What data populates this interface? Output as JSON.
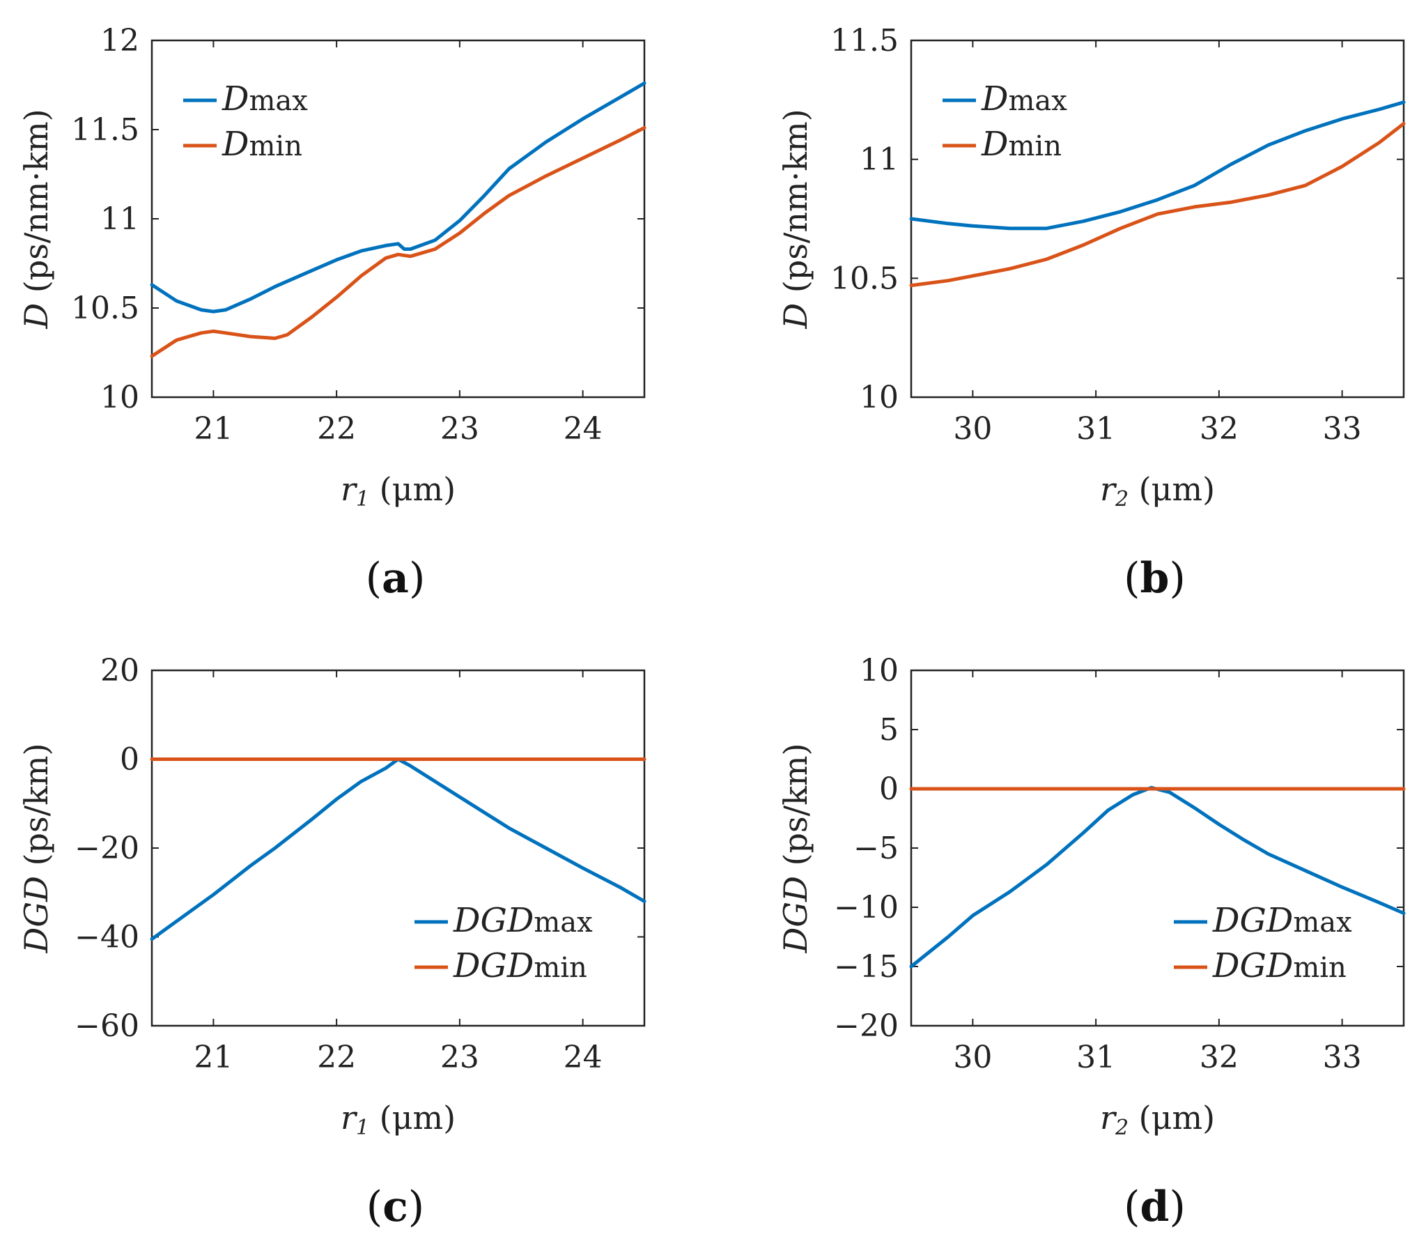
{
  "colors": {
    "max": "#0072BD",
    "min": "#D95319",
    "axis": "#222222"
  },
  "chart_data": [
    {
      "type": "line",
      "panel_label": "a",
      "xlabel_var": "r",
      "xlabel_sub": "1",
      "xlabel_unit": "(μm)",
      "ylabel_var": "D",
      "ylabel_unit": "(ps/nm·km)",
      "xlim": [
        20.5,
        24.5
      ],
      "ylim": [
        10,
        12
      ],
      "xticks": [
        21,
        22,
        23,
        24
      ],
      "xtick_labels": [
        "21",
        "22",
        "23",
        "24"
      ],
      "yticks": [
        10,
        10.5,
        11,
        11.5,
        12
      ],
      "ytick_labels": [
        "10",
        "10.5",
        "11",
        "11.5",
        "12"
      ],
      "legend_loc": "top-left",
      "series": [
        {
          "key": "max",
          "name_var": "D",
          "name_sub": "max",
          "x": [
            20.5,
            20.7,
            20.9,
            21.0,
            21.1,
            21.3,
            21.5,
            21.8,
            22.0,
            22.2,
            22.4,
            22.5,
            22.55,
            22.6,
            22.8,
            23.0,
            23.2,
            23.4,
            23.7,
            24.0,
            24.3,
            24.5
          ],
          "y": [
            10.63,
            10.54,
            10.49,
            10.48,
            10.49,
            10.55,
            10.62,
            10.71,
            10.77,
            10.82,
            10.85,
            10.86,
            10.83,
            10.83,
            10.88,
            10.99,
            11.13,
            11.28,
            11.43,
            11.56,
            11.68,
            11.76
          ]
        },
        {
          "key": "min",
          "name_var": "D",
          "name_sub": "min",
          "x": [
            20.5,
            20.7,
            20.9,
            21.0,
            21.1,
            21.3,
            21.5,
            21.6,
            21.8,
            22.0,
            22.2,
            22.4,
            22.5,
            22.6,
            22.8,
            23.0,
            23.2,
            23.4,
            23.7,
            24.0,
            24.3,
            24.5
          ],
          "y": [
            10.23,
            10.32,
            10.36,
            10.37,
            10.36,
            10.34,
            10.33,
            10.35,
            10.45,
            10.56,
            10.68,
            10.78,
            10.8,
            10.79,
            10.83,
            10.92,
            11.03,
            11.13,
            11.24,
            11.34,
            11.44,
            11.51
          ]
        }
      ]
    },
    {
      "type": "line",
      "panel_label": "b",
      "xlabel_var": "r",
      "xlabel_sub": "2",
      "xlabel_unit": "(μm)",
      "ylabel_var": "D",
      "ylabel_unit": "(ps/nm·km)",
      "xlim": [
        29.5,
        33.5
      ],
      "ylim": [
        10,
        11.5
      ],
      "xticks": [
        30,
        31,
        32,
        33
      ],
      "xtick_labels": [
        "30",
        "31",
        "32",
        "33"
      ],
      "yticks": [
        10,
        10.5,
        11,
        11.5
      ],
      "ytick_labels": [
        "10",
        "10.5",
        "11",
        "11.5"
      ],
      "legend_loc": "top-left",
      "series": [
        {
          "key": "max",
          "name_var": "D",
          "name_sub": "max",
          "x": [
            29.5,
            29.8,
            30.0,
            30.3,
            30.6,
            30.9,
            31.2,
            31.5,
            31.8,
            32.1,
            32.4,
            32.7,
            33.0,
            33.3,
            33.5
          ],
          "y": [
            10.75,
            10.73,
            10.72,
            10.71,
            10.71,
            10.74,
            10.78,
            10.83,
            10.89,
            10.98,
            11.06,
            11.12,
            11.17,
            11.21,
            11.24
          ]
        },
        {
          "key": "min",
          "name_var": "D",
          "name_sub": "min",
          "x": [
            29.5,
            29.8,
            30.0,
            30.3,
            30.6,
            30.9,
            31.2,
            31.5,
            31.8,
            32.1,
            32.4,
            32.7,
            33.0,
            33.3,
            33.5
          ],
          "y": [
            10.47,
            10.49,
            10.51,
            10.54,
            10.58,
            10.64,
            10.71,
            10.77,
            10.8,
            10.82,
            10.85,
            10.89,
            10.97,
            11.07,
            11.15
          ]
        }
      ]
    },
    {
      "type": "line",
      "panel_label": "c",
      "xlabel_var": "r",
      "xlabel_sub": "1",
      "xlabel_unit": "(μm)",
      "ylabel_var": "DGD",
      "ylabel_unit": "(ps/km)",
      "xlim": [
        20.5,
        24.5
      ],
      "ylim": [
        -60,
        20
      ],
      "xticks": [
        21,
        22,
        23,
        24
      ],
      "xtick_labels": [
        "21",
        "22",
        "23",
        "24"
      ],
      "yticks": [
        -60,
        -40,
        -20,
        0,
        20
      ],
      "ytick_labels": [
        "−60",
        "−40",
        "−20",
        "0",
        "20"
      ],
      "legend_loc": "bottom-right",
      "series": [
        {
          "key": "max",
          "name_var": "DGD",
          "name_sub": "max",
          "x": [
            20.5,
            20.8,
            21.0,
            21.3,
            21.5,
            21.8,
            22.0,
            22.2,
            22.4,
            22.5,
            22.6,
            22.8,
            23.0,
            23.2,
            23.4,
            23.7,
            24.0,
            24.3,
            24.5
          ],
          "y": [
            -40.5,
            -34.5,
            -30.5,
            -24.0,
            -20.0,
            -13.5,
            -9.0,
            -5.0,
            -2.0,
            0.0,
            -1.5,
            -5.0,
            -8.5,
            -12.0,
            -15.5,
            -20.0,
            -24.5,
            -28.8,
            -32.0
          ]
        },
        {
          "key": "min",
          "name_var": "DGD",
          "name_sub": "min",
          "x": [
            20.5,
            22.5,
            24.5
          ],
          "y": [
            0,
            0,
            0
          ]
        }
      ]
    },
    {
      "type": "line",
      "panel_label": "d",
      "xlabel_var": "r",
      "xlabel_sub": "2",
      "xlabel_unit": "(μm)",
      "ylabel_var": "DGD",
      "ylabel_unit": "(ps/km)",
      "xlim": [
        29.5,
        33.5
      ],
      "ylim": [
        -20,
        10
      ],
      "xticks": [
        30,
        31,
        32,
        33
      ],
      "xtick_labels": [
        "30",
        "31",
        "32",
        "33"
      ],
      "yticks": [
        -20,
        -15,
        -10,
        -5,
        0,
        5,
        10
      ],
      "ytick_labels": [
        "−20",
        "−15",
        "−10",
        "−5",
        "0",
        "5",
        "10"
      ],
      "legend_loc": "bottom-right",
      "series": [
        {
          "key": "max",
          "name_var": "DGD",
          "name_sub": "max",
          "x": [
            29.5,
            29.8,
            30.0,
            30.3,
            30.6,
            30.9,
            31.1,
            31.3,
            31.45,
            31.6,
            31.8,
            32.0,
            32.2,
            32.4,
            32.7,
            33.0,
            33.3,
            33.5
          ],
          "y": [
            -15.0,
            -12.5,
            -10.7,
            -8.7,
            -6.4,
            -3.7,
            -1.8,
            -0.5,
            0.1,
            -0.3,
            -1.6,
            -3.0,
            -4.3,
            -5.5,
            -6.9,
            -8.3,
            -9.6,
            -10.5
          ]
        },
        {
          "key": "min",
          "name_var": "DGD",
          "name_sub": "min",
          "x": [
            29.5,
            31.5,
            33.5
          ],
          "y": [
            0,
            0,
            0
          ]
        }
      ]
    }
  ]
}
